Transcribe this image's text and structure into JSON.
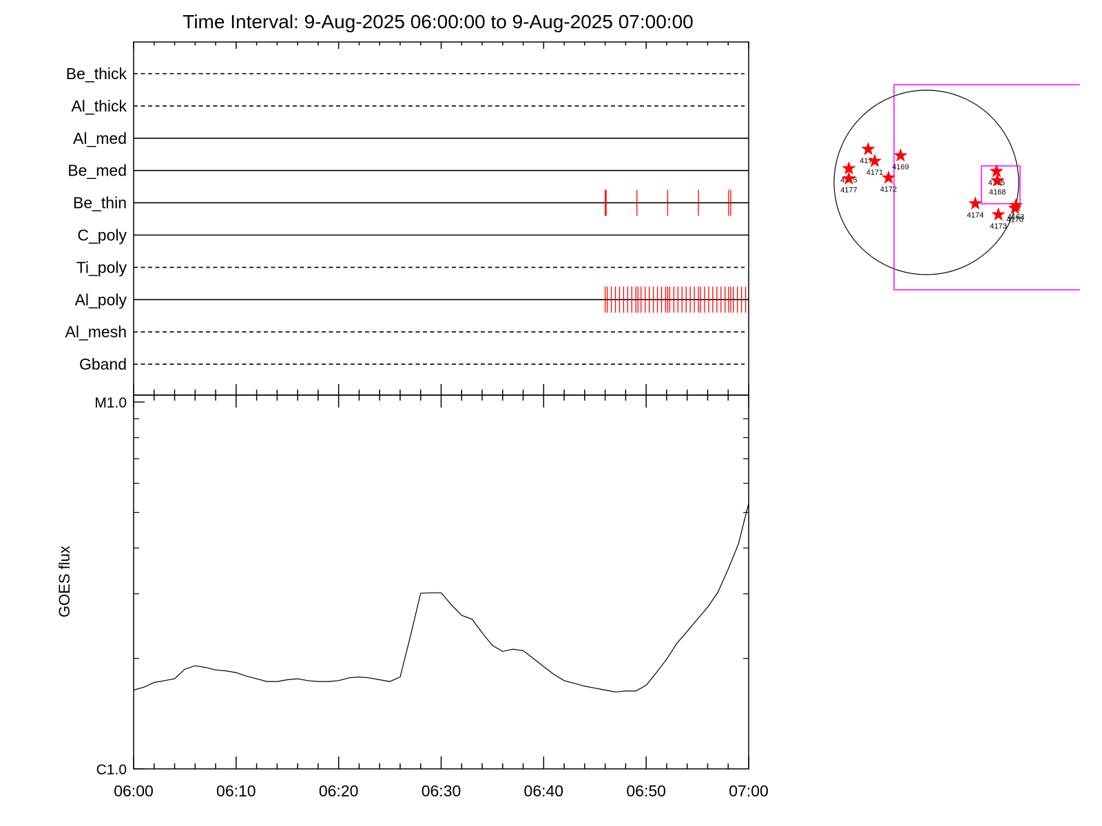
{
  "title": "Time Interval:  9-Aug-2025 06:00:00 to  9-Aug-2025 07:00:00",
  "colors": {
    "axis": "#000000",
    "marks": "#ff0000",
    "fov_box": "#ff00ff",
    "disk": "#000000"
  },
  "chart_data": [
    {
      "type": "line",
      "panel": "filter-timeline",
      "x_range_minutes": [
        0,
        60
      ],
      "rows": [
        {
          "name": "Be_thick",
          "style": "dashed",
          "marks": []
        },
        {
          "name": "Al_thick",
          "style": "dashed",
          "marks": []
        },
        {
          "name": "Al_med",
          "style": "solid",
          "marks": []
        },
        {
          "name": "Be_med",
          "style": "solid",
          "marks": []
        },
        {
          "name": "Be_thin",
          "style": "solid",
          "marks": [
            46.0,
            46.1,
            49.1,
            52.1,
            55.1,
            58.05,
            58.25
          ]
        },
        {
          "name": "C_poly",
          "style": "solid",
          "marks": []
        },
        {
          "name": "Ti_poly",
          "style": "dashed",
          "marks": []
        },
        {
          "name": "Al_poly",
          "style": "solid",
          "marks": [
            46.0,
            46.2,
            46.6,
            47.0,
            47.4,
            47.8,
            48.2,
            48.6,
            49.0,
            49.2,
            49.5,
            49.9,
            50.3,
            50.7,
            51.1,
            51.5,
            51.9,
            52.1,
            52.3,
            52.7,
            53.1,
            53.5,
            53.9,
            54.3,
            54.7,
            55.1,
            55.3,
            55.7,
            56.1,
            56.5,
            56.9,
            57.3,
            57.7,
            58.05,
            58.25,
            58.5,
            58.9,
            59.3,
            59.7
          ]
        },
        {
          "name": "Al_mesh",
          "style": "dashed",
          "marks": []
        },
        {
          "name": "Gband",
          "style": "dashed",
          "marks": []
        }
      ]
    },
    {
      "type": "line",
      "panel": "goes-flux",
      "ylabel": "GOES flux",
      "y_scale": "log",
      "ylim": [
        1e-06,
        1e-05
      ],
      "y_tick_labels": [
        "C1.0",
        "M1.0"
      ],
      "x_tick_labels": [
        "06:00",
        "06:10",
        "06:20",
        "06:30",
        "06:40",
        "06:50",
        "07:00"
      ],
      "xlim_minutes": [
        0,
        60
      ],
      "series": [
        {
          "x": [
            0,
            1,
            2,
            3,
            4,
            5,
            6,
            7,
            8,
            9,
            10,
            11,
            12,
            13,
            14,
            15,
            16,
            17,
            18,
            19,
            20,
            21,
            22,
            23,
            24,
            25,
            26,
            27,
            28,
            29,
            30,
            31,
            32,
            33,
            34,
            35,
            36,
            37,
            38,
            39,
            40,
            41,
            42,
            43,
            44,
            45,
            46,
            47,
            48,
            49,
            50,
            51,
            52,
            53,
            54,
            55,
            56,
            57,
            58,
            59,
            60
          ],
          "y": [
            1.64e-06,
            1.67e-06,
            1.72e-06,
            1.74e-06,
            1.76e-06,
            1.87e-06,
            1.91e-06,
            1.89e-06,
            1.86e-06,
            1.85e-06,
            1.83e-06,
            1.79e-06,
            1.76e-06,
            1.73e-06,
            1.73e-06,
            1.75e-06,
            1.76e-06,
            1.74e-06,
            1.73e-06,
            1.73e-06,
            1.74e-06,
            1.77e-06,
            1.78e-06,
            1.77e-06,
            1.75e-06,
            1.73e-06,
            1.78e-06,
            2.3e-06,
            3.01e-06,
            3.02e-06,
            3.02e-06,
            2.8e-06,
            2.62e-06,
            2.56e-06,
            2.35e-06,
            2.17e-06,
            2.09e-06,
            2.12e-06,
            2.1e-06,
            2e-06,
            1.9e-06,
            1.81e-06,
            1.74e-06,
            1.71e-06,
            1.68e-06,
            1.66e-06,
            1.64e-06,
            1.62e-06,
            1.63e-06,
            1.63e-06,
            1.69e-06,
            1.83e-06,
            1.99e-06,
            2.2e-06,
            2.37e-06,
            2.56e-06,
            2.76e-06,
            3.03e-06,
            3.5e-06,
            4.1e-06,
            5.3e-06
          ]
        }
      ]
    },
    {
      "type": "scatter",
      "panel": "solar-disk",
      "points": [
        {
          "name": "4176",
          "x": -0.63,
          "y": 0.36
        },
        {
          "name": "4171",
          "x": -0.56,
          "y": 0.23
        },
        {
          "name": "4169",
          "x": -0.28,
          "y": 0.29
        },
        {
          "name": "4175",
          "x": -0.84,
          "y": 0.15
        },
        {
          "name": "4177",
          "x": -0.84,
          "y": 0.04
        },
        {
          "name": "4172",
          "x": -0.41,
          "y": 0.05
        },
        {
          "name": "4165",
          "x": 0.76,
          "y": 0.12
        },
        {
          "name": "4168",
          "x": 0.77,
          "y": 0.02
        },
        {
          "name": "4174",
          "x": 0.53,
          "y": -0.23
        },
        {
          "name": "4173",
          "x": 0.78,
          "y": -0.35
        },
        {
          "name": "4163",
          "x": 0.97,
          "y": -0.25
        },
        {
          "name": "4170",
          "x": 0.96,
          "y": -0.28
        }
      ]
    }
  ]
}
